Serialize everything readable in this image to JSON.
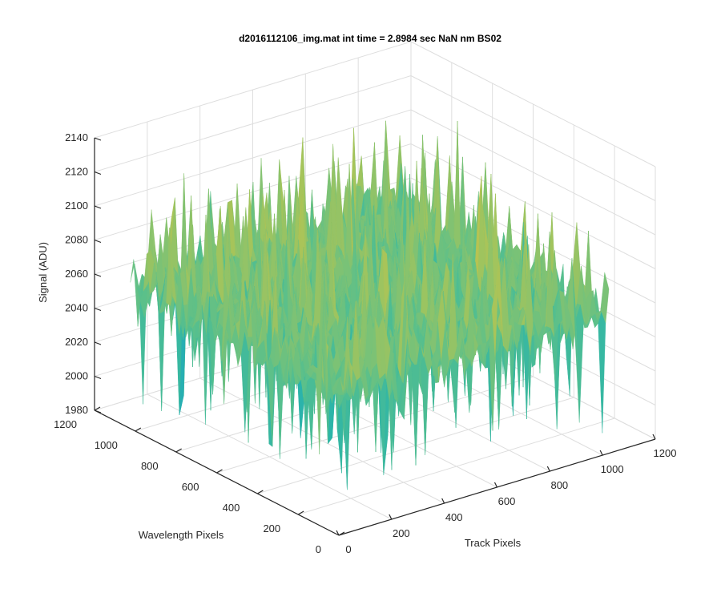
{
  "chart_data": {
    "type": "surface",
    "title": "d2016112106_img.mat int time = 2.8984 sec  NaN nm BS02",
    "xlabel": "Track Pixels",
    "ylabel": "Wavelength Pixels",
    "zlabel": "Signal (ADU)",
    "xlim": [
      0,
      1200
    ],
    "ylim": [
      0,
      1200
    ],
    "zlim": [
      1980,
      2140
    ],
    "x_ticks": [
      0,
      200,
      400,
      600,
      800,
      1000,
      1200
    ],
    "y_ticks": [
      0,
      200,
      400,
      600,
      800,
      1000,
      1200
    ],
    "z_ticks": [
      1980,
      2000,
      2020,
      2040,
      2060,
      2080,
      2100,
      2120,
      2140
    ],
    "surface_extent": {
      "x": [
        0,
        1024
      ],
      "y": [
        0,
        1024
      ]
    },
    "signal_mean": 2065,
    "signal_range": [
      1985,
      2135
    ],
    "colormap": [
      "#0072bd",
      "#1a9fc9",
      "#2cb5a9",
      "#5cc08a",
      "#a3c45c",
      "#e0c03c",
      "#f6c93a"
    ],
    "grid": true,
    "view": "3d-perspective"
  }
}
